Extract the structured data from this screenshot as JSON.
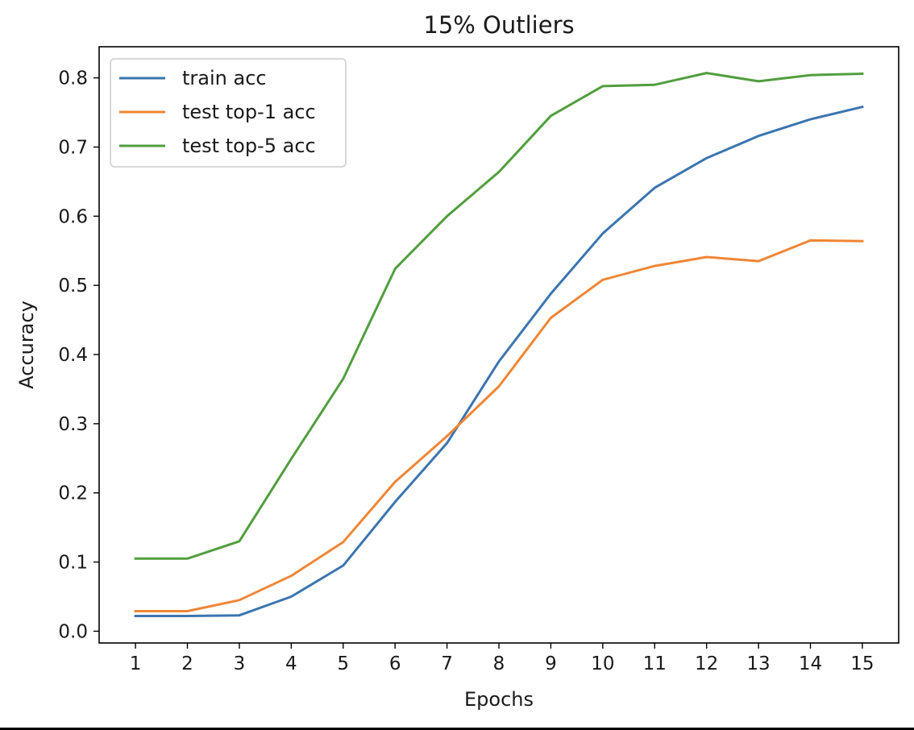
{
  "chart_data": {
    "type": "line",
    "title": "15% Outliers",
    "xlabel": "Epochs",
    "ylabel": "Accuracy",
    "x": [
      1,
      2,
      3,
      4,
      5,
      6,
      7,
      8,
      9,
      10,
      11,
      12,
      13,
      14,
      15
    ],
    "x_tick_labels": [
      "1",
      "2",
      "3",
      "4",
      "5",
      "6",
      "7",
      "8",
      "9",
      "10",
      "11",
      "12",
      "13",
      "14",
      "15"
    ],
    "y_ticks": [
      0.0,
      0.1,
      0.2,
      0.3,
      0.4,
      0.5,
      0.6,
      0.7,
      0.8
    ],
    "y_tick_labels": [
      "0.0",
      "0.1",
      "0.2",
      "0.3",
      "0.4",
      "0.5",
      "0.6",
      "0.7",
      "0.8"
    ],
    "xlim": [
      0.3,
      15.7
    ],
    "ylim": [
      -0.017,
      0.845
    ],
    "grid": false,
    "legend_position": "top-left",
    "series": [
      {
        "name": "train acc",
        "color": "#3b75af",
        "values": [
          0.022,
          0.022,
          0.023,
          0.05,
          0.095,
          0.187,
          0.272,
          0.39,
          0.488,
          0.575,
          0.641,
          0.684,
          0.716,
          0.74,
          0.758
        ]
      },
      {
        "name": "test top-1 acc",
        "color": "#ef8636",
        "values": [
          0.029,
          0.029,
          0.045,
          0.08,
          0.129,
          0.216,
          0.282,
          0.354,
          0.453,
          0.508,
          0.528,
          0.541,
          0.535,
          0.565,
          0.564
        ]
      },
      {
        "name": "test top-5 acc",
        "color": "#519e3e",
        "values": [
          0.105,
          0.105,
          0.13,
          0.249,
          0.365,
          0.524,
          0.6,
          0.664,
          0.745,
          0.788,
          0.79,
          0.807,
          0.795,
          0.804,
          0.806
        ]
      }
    ]
  }
}
